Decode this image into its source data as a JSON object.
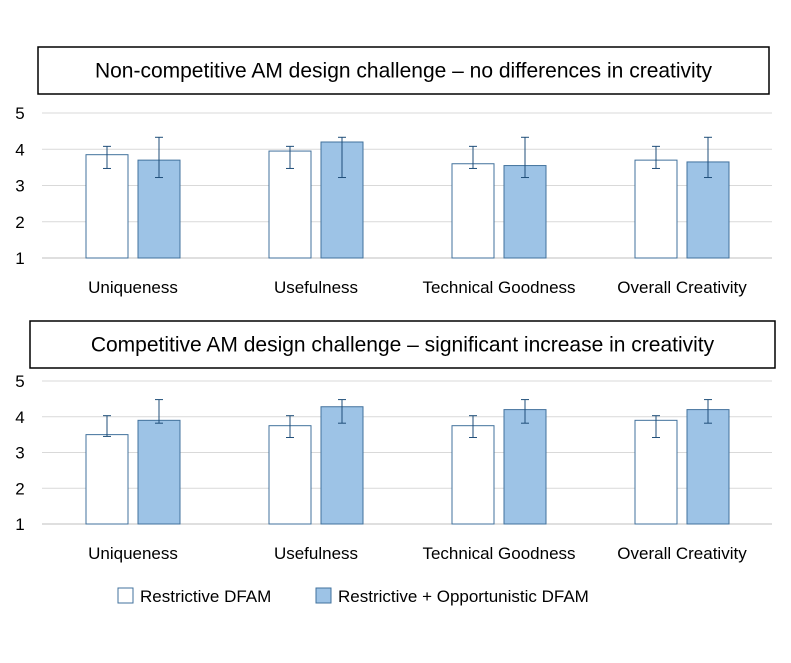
{
  "colors": {
    "restrictive_fill": "#ffffff",
    "combined_fill": "#9dc3e6",
    "bar_border": "#41719c",
    "error_bar": "#1f4e79",
    "grid": "#d9d9d9"
  },
  "legend": {
    "placement": "bottom",
    "items": [
      {
        "label": "Restrictive DFAM",
        "color": "#ffffff"
      },
      {
        "label": "Restrictive + Opportunistic DFAM",
        "color": "#9dc3e6"
      }
    ]
  },
  "chart_data": [
    {
      "type": "bar",
      "title": "Non-competitive AM design challenge – no differences in creativity",
      "categories": [
        "Uniqueness",
        "Usefulness",
        "Technical Goodness",
        "Overall Creativity"
      ],
      "ylim": [
        1,
        5
      ],
      "yticks": [
        "1",
        "2",
        "3",
        "4",
        "5"
      ],
      "grid": true,
      "series": [
        {
          "name": "Restrictive DFAM",
          "values": [
            3.85,
            3.95,
            3.6,
            3.7
          ],
          "error_low": [
            3.47,
            3.47,
            3.47,
            3.47
          ],
          "error_high": [
            4.08,
            4.08,
            4.08,
            4.08
          ]
        },
        {
          "name": "Restrictive + Opportunistic DFAM",
          "values": [
            3.7,
            4.2,
            3.55,
            3.65
          ],
          "error_low": [
            3.22,
            3.22,
            3.22,
            3.22
          ],
          "error_high": [
            4.33,
            4.33,
            4.33,
            4.33
          ]
        }
      ]
    },
    {
      "type": "bar",
      "title": "Competitive AM design challenge – significant increase in creativity",
      "categories": [
        "Uniqueness",
        "Usefulness",
        "Technical Goodness",
        "Overall Creativity"
      ],
      "ylim": [
        1,
        5
      ],
      "yticks": [
        "1",
        "2",
        "3",
        "4",
        "5"
      ],
      "grid": true,
      "series": [
        {
          "name": "Restrictive DFAM",
          "values": [
            3.5,
            3.75,
            3.75,
            3.9
          ],
          "error_low": [
            3.45,
            3.42,
            3.42,
            3.42
          ],
          "error_high": [
            4.03,
            4.03,
            4.03,
            4.03
          ]
        },
        {
          "name": "Restrictive + Opportunistic DFAM",
          "values": [
            3.9,
            4.28,
            4.2,
            4.2
          ],
          "error_low": [
            3.82,
            3.82,
            3.82,
            3.82
          ],
          "error_high": [
            4.48,
            4.48,
            4.48,
            4.48
          ]
        }
      ]
    }
  ]
}
